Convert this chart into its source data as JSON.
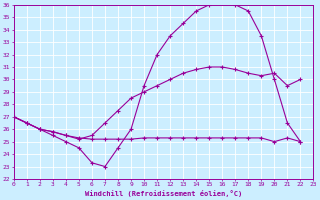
{
  "xlabel": "Windchill (Refroidissement éolien,°C)",
  "xlim": [
    0,
    23
  ],
  "ylim": [
    22,
    36
  ],
  "yticks": [
    22,
    23,
    24,
    25,
    26,
    27,
    28,
    29,
    30,
    31,
    32,
    33,
    34,
    35,
    36
  ],
  "xticks": [
    0,
    1,
    2,
    3,
    4,
    5,
    6,
    7,
    8,
    9,
    10,
    11,
    12,
    13,
    14,
    15,
    16,
    17,
    18,
    19,
    20,
    21,
    22,
    23
  ],
  "bg_color": "#cceeff",
  "line_color": "#990099",
  "grid_color": "#ffffff",
  "lines": [
    {
      "x": [
        0,
        1,
        2,
        3,
        4,
        5,
        6,
        7,
        8,
        9,
        10,
        11,
        12,
        13,
        14,
        15,
        16,
        17,
        18,
        19,
        20,
        21,
        22
      ],
      "y": [
        27.0,
        26.5,
        26.0,
        25.8,
        25.5,
        25.3,
        25.2,
        25.2,
        25.2,
        25.2,
        25.3,
        25.3,
        25.3,
        25.3,
        25.3,
        25.3,
        25.3,
        25.3,
        25.3,
        25.3,
        25.0,
        25.3,
        25.0
      ]
    },
    {
      "x": [
        0,
        1,
        2,
        3,
        4,
        5,
        6,
        7,
        8,
        9,
        10,
        11,
        12,
        13,
        14,
        15,
        16,
        17,
        18,
        19,
        20,
        21,
        22
      ],
      "y": [
        27.0,
        26.5,
        26.0,
        25.8,
        25.5,
        25.2,
        25.5,
        26.5,
        27.5,
        28.5,
        29.0,
        29.5,
        30.0,
        30.5,
        30.8,
        31.0,
        31.0,
        30.8,
        30.5,
        30.3,
        30.5,
        29.5,
        30.0
      ]
    },
    {
      "x": [
        0,
        1,
        2,
        3,
        4,
        5,
        6,
        7,
        8,
        9,
        10,
        11,
        12,
        13,
        14,
        15,
        16,
        17,
        18,
        19,
        20,
        21,
        22
      ],
      "y": [
        27.0,
        26.5,
        26.0,
        25.5,
        25.0,
        24.5,
        23.3,
        23.0,
        24.5,
        26.0,
        29.5,
        32.0,
        33.5,
        34.5,
        35.5,
        36.0,
        36.2,
        36.0,
        35.5,
        33.5,
        30.0,
        26.5,
        25.0
      ]
    }
  ]
}
